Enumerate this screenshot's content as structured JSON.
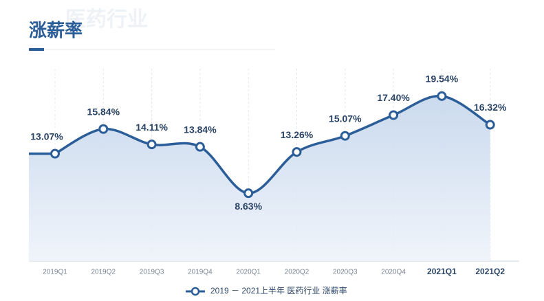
{
  "chart_data": {
    "type": "line",
    "title": "涨薪率",
    "watermark": "医药行业",
    "categories": [
      "2019Q1",
      "2019Q2",
      "2019Q3",
      "2019Q4",
      "2020Q1",
      "2020Q2",
      "2020Q3",
      "2020Q4",
      "2021Q1",
      "2021Q2"
    ],
    "emphasized_categories": [
      8,
      9
    ],
    "series": [
      {
        "name": "2019 － 2021上半年 医药行业 涨薪率",
        "color": "#2b5d98",
        "values": [
          13.07,
          15.84,
          14.11,
          13.84,
          8.63,
          13.26,
          15.07,
          17.4,
          19.54,
          16.32
        ],
        "value_labels": [
          "13.07%",
          "15.84%",
          "14.11%",
          "13.84%",
          "8.63%",
          "13.26%",
          "15.07%",
          "17.40%",
          "19.54%",
          "16.32%"
        ]
      }
    ],
    "ylim": [
      1,
      23
    ],
    "grid": true,
    "legend": "bottom"
  }
}
